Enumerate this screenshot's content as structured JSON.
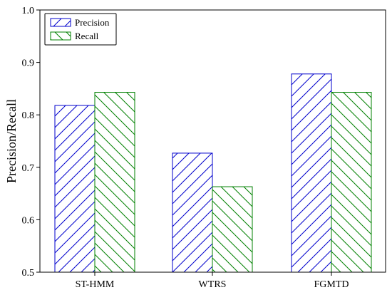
{
  "chart_data": {
    "type": "bar",
    "categories": [
      "ST-HMM",
      "WTRS",
      "FGMTD"
    ],
    "series": [
      {
        "name": "Precision",
        "values": [
          0.818,
          0.727,
          0.878
        ],
        "color": "#0000cc",
        "hatch": "forward-diagonal"
      },
      {
        "name": "Recall",
        "values": [
          0.843,
          0.663,
          0.843
        ],
        "color": "#008000",
        "hatch": "backward-diagonal"
      }
    ],
    "title": "",
    "xlabel": "",
    "ylabel": "Precision/Recall",
    "ylim": [
      0.5,
      1.0
    ],
    "yticks": [
      "0.5",
      "0.6",
      "0.7",
      "0.8",
      "0.9",
      "1.0"
    ],
    "grid": false,
    "legend": "top-left"
  }
}
